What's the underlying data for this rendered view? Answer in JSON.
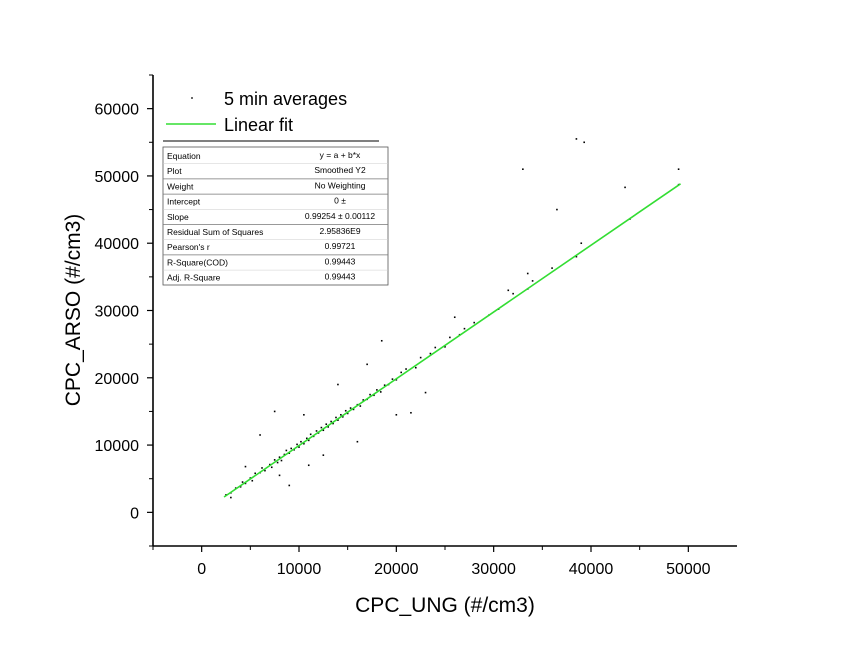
{
  "chart_data": {
    "type": "scatter",
    "title": "",
    "xlabel": "CPC_UNG (#/cm3)",
    "ylabel": "CPC_ARSO (#/cm3)",
    "xlim": [
      -5000,
      55000
    ],
    "ylim": [
      -5000,
      65000
    ],
    "xticks": [
      0,
      10000,
      20000,
      30000,
      40000,
      50000
    ],
    "yticks": [
      0,
      10000,
      20000,
      30000,
      40000,
      50000,
      60000
    ],
    "xtick_labels": [
      "0",
      "10000",
      "20000",
      "30000",
      "40000",
      "50000"
    ],
    "ytick_labels": [
      "0",
      "10000",
      "20000",
      "30000",
      "40000",
      "50000",
      "60000"
    ],
    "grid": false,
    "legend": {
      "placement": "top-left",
      "entries": [
        {
          "label": "5 min averages",
          "type": "scatter",
          "color": "#000000"
        },
        {
          "label": "Linear fit",
          "type": "line",
          "color": "#33dd33"
        }
      ]
    },
    "fit": {
      "slope": 0.99254,
      "intercept": 0,
      "x_range": [
        2300,
        49200
      ],
      "color": "#33dd33"
    },
    "fit_table": {
      "rows": [
        [
          "Equation",
          "y = a + b*x"
        ],
        [
          "Plot",
          "Smoothed Y2"
        ],
        [
          "Weight",
          "No Weighting"
        ],
        [
          "Intercept",
          "0 ±"
        ],
        [
          "Slope",
          "0.99254 ± 0.00112"
        ],
        [
          "Residual Sum of Squares",
          "2.95836E9"
        ],
        [
          "Pearson's r",
          "0.99721"
        ],
        [
          "R-Square(COD)",
          "0.99443"
        ],
        [
          "Adj. R-Square",
          "0.99443"
        ]
      ]
    },
    "series": [
      {
        "name": "5 min averages",
        "color": "#000000",
        "points": [
          [
            2500,
            2600
          ],
          [
            3000,
            2900
          ],
          [
            3500,
            3600
          ],
          [
            4000,
            3800
          ],
          [
            4200,
            4500
          ],
          [
            4500,
            4300
          ],
          [
            5000,
            5100
          ],
          [
            5200,
            4700
          ],
          [
            5500,
            5800
          ],
          [
            6000,
            5900
          ],
          [
            6200,
            6600
          ],
          [
            6500,
            6200
          ],
          [
            7000,
            7100
          ],
          [
            7200,
            6700
          ],
          [
            7500,
            7800
          ],
          [
            7800,
            7400
          ],
          [
            8000,
            8200
          ],
          [
            8200,
            7700
          ],
          [
            8500,
            8600
          ],
          [
            8700,
            9200
          ],
          [
            9000,
            8800
          ],
          [
            9200,
            9500
          ],
          [
            9500,
            9300
          ],
          [
            9800,
            10100
          ],
          [
            10000,
            9700
          ],
          [
            10200,
            10500
          ],
          [
            10500,
            10200
          ],
          [
            10800,
            11000
          ],
          [
            11000,
            10700
          ],
          [
            11200,
            11600
          ],
          [
            11500,
            11300
          ],
          [
            11800,
            12100
          ],
          [
            12000,
            11800
          ],
          [
            12300,
            12600
          ],
          [
            12500,
            12200
          ],
          [
            12800,
            13100
          ],
          [
            13000,
            12700
          ],
          [
            13300,
            13500
          ],
          [
            13500,
            13200
          ],
          [
            13800,
            14100
          ],
          [
            14000,
            13700
          ],
          [
            14300,
            14500
          ],
          [
            14500,
            14200
          ],
          [
            14800,
            15100
          ],
          [
            15000,
            14700
          ],
          [
            15300,
            15500
          ],
          [
            15600,
            15300
          ],
          [
            16000,
            16000
          ],
          [
            16300,
            15800
          ],
          [
            16600,
            16700
          ],
          [
            17000,
            16800
          ],
          [
            17300,
            17500
          ],
          [
            17700,
            17400
          ],
          [
            18000,
            18200
          ],
          [
            18400,
            17900
          ],
          [
            18800,
            18900
          ],
          [
            19200,
            19000
          ],
          [
            19600,
            19800
          ],
          [
            20000,
            19700
          ],
          [
            20500,
            20800
          ],
          [
            21000,
            21300
          ],
          [
            22000,
            21500
          ],
          [
            22500,
            23000
          ],
          [
            23500,
            23600
          ],
          [
            24000,
            24500
          ],
          [
            25000,
            24600
          ],
          [
            25500,
            26000
          ],
          [
            26500,
            26400
          ],
          [
            27000,
            27300
          ],
          [
            28000,
            28200
          ],
          [
            29500,
            29300
          ],
          [
            30500,
            30200
          ],
          [
            32000,
            32500
          ],
          [
            33500,
            33200
          ],
          [
            34000,
            34400
          ],
          [
            36000,
            36300
          ],
          [
            38500,
            38000
          ],
          [
            44000,
            43600
          ],
          [
            49000,
            48700
          ],
          [
            7500,
            15000
          ],
          [
            6000,
            11500
          ],
          [
            9000,
            4000
          ],
          [
            11000,
            7000
          ],
          [
            12500,
            8500
          ],
          [
            18500,
            25500
          ],
          [
            20000,
            14500
          ],
          [
            17000,
            22000
          ],
          [
            14000,
            19000
          ],
          [
            16000,
            10500
          ],
          [
            26000,
            29000
          ],
          [
            21500,
            14800
          ],
          [
            23000,
            17800
          ],
          [
            33000,
            51000
          ],
          [
            38500,
            55500
          ],
          [
            39300,
            55000
          ],
          [
            36500,
            45000
          ],
          [
            43500,
            48300
          ],
          [
            49000,
            51000
          ],
          [
            39000,
            40000
          ],
          [
            33500,
            35500
          ],
          [
            31500,
            33000
          ],
          [
            3000,
            2200
          ],
          [
            4500,
            6800
          ],
          [
            8000,
            5500
          ],
          [
            10500,
            14500
          ]
        ]
      }
    ]
  }
}
